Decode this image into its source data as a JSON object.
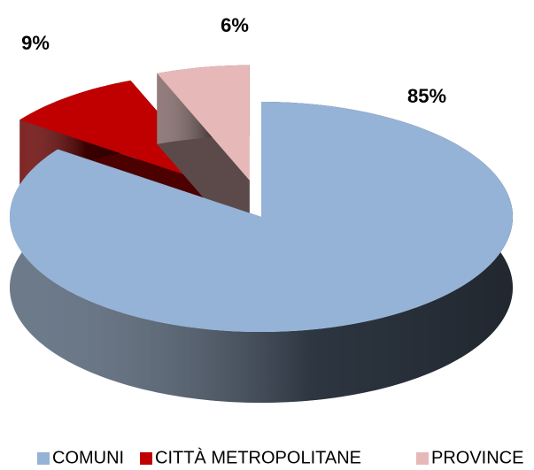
{
  "chart_data": {
    "type": "pie",
    "categories": [
      "COMUNI",
      "CITTÀ METROPOLITANE",
      "PROVINCE"
    ],
    "values": [
      85,
      9,
      6
    ],
    "value_labels": [
      "85%",
      "9%",
      "6%"
    ],
    "colors": [
      "#95b3d7",
      "#c00000",
      "#e6b9b8"
    ],
    "legend": "bottom"
  }
}
